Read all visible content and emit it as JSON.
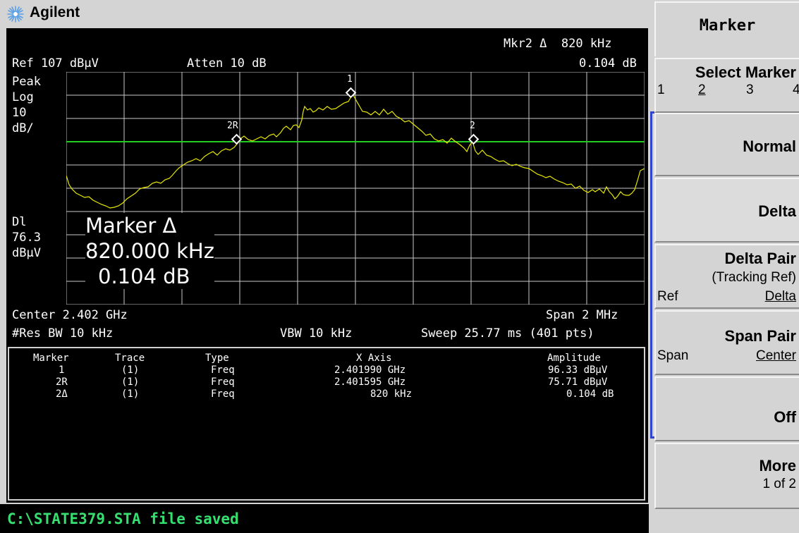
{
  "header": {
    "brand": "Agilent"
  },
  "screen": {
    "ref_level": "Ref 107 dBµV",
    "attenuation": "Atten 10 dB",
    "marker_readout_freq": "Mkr2 Δ  820 kHz",
    "marker_readout_amp": "0.104 dB",
    "detector": "Peak",
    "scale_type": "Log",
    "scale_value": "10",
    "scale_unit": "dB/",
    "display_line_label": "Dl",
    "display_line_value": "76.3",
    "display_line_unit": "dBµV",
    "big_marker": {
      "title": "Marker Δ",
      "freq": "820.000 kHz",
      "amp": "0.104 dB"
    },
    "center": "Center 2.402 GHz",
    "span": "Span 2 MHz",
    "res_bw": "#Res BW 10 kHz",
    "vbw": "VBW 10 kHz",
    "sweep": "Sweep 25.77 ms (401 pts)",
    "marker_labels": {
      "m1": "1",
      "m2r": "2R",
      "m2": "2"
    }
  },
  "marker_table": {
    "headers": [
      "Marker",
      "Trace",
      "Type",
      "X Axis",
      "Amplitude"
    ],
    "rows": [
      [
        "1",
        "(1)",
        "Freq",
        "2.401990 GHz",
        "96.33 dBµV"
      ],
      [
        "2R",
        "(1)",
        "Freq",
        "2.401595 GHz",
        "75.71 dBµV"
      ],
      [
        "2Δ",
        "(1)",
        "Freq",
        "820 kHz",
        "0.104 dB"
      ]
    ]
  },
  "status": {
    "message": "C:\\STATE379.STA file saved"
  },
  "softkeys": {
    "menu_title": "Marker",
    "select_marker": {
      "label": "Select Marker",
      "options": [
        "1",
        "2",
        "3",
        "4"
      ],
      "selected": "2"
    },
    "normal": "Normal",
    "delta": "Delta",
    "delta_pair": {
      "label": "Delta Pair",
      "sub": "(Tracking Ref)",
      "left": "Ref",
      "right": "Delta"
    },
    "span_pair": {
      "label": "Span Pair",
      "left": "Span",
      "right": "Center"
    },
    "off": "Off",
    "more": {
      "label": "More",
      "sub": "1 of 2"
    }
  },
  "colors": {
    "trace": "#e8e800",
    "display_line": "#22cc22",
    "status_text": "#36e070",
    "grid": "#c8c8c8",
    "active_key_bracket": "#3344cc"
  }
}
